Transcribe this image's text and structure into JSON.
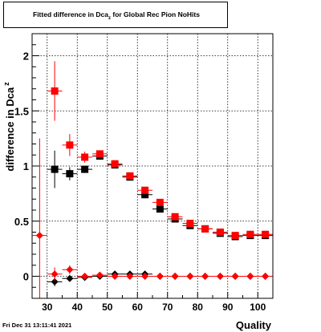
{
  "header": {
    "title_main": "Fitted difference in Dca",
    "title_sub": "z",
    "title_tail": "  for Global Rec Pion NoHits"
  },
  "footer": {
    "timestamp": "Fri Dec 31 13:11:41 2021"
  },
  "chart_data": {
    "type": "scatter",
    "title": "Fitted difference in Dca_z for Global Rec Pion NoHits",
    "xlabel": "Quality",
    "ylabel_main": "difference in Dca",
    "ylabel_sub": "z",
    "xlim": [
      25,
      105
    ],
    "ylim": [
      -0.2,
      2.2
    ],
    "x_ticks": [
      30,
      40,
      50,
      60,
      70,
      80,
      90,
      100
    ],
    "y_ticks": [
      0,
      0.5,
      1,
      1.5,
      2
    ],
    "y_tick_labels": [
      "0",
      "0.5",
      "1",
      "1.5",
      "2"
    ],
    "grid": true,
    "series": [
      {
        "marker": "square",
        "color": "#000000",
        "points": [
          {
            "x": 32.5,
            "y": 0.97,
            "err": 0.17
          },
          {
            "x": 37.5,
            "y": 0.93,
            "err": 0.06
          },
          {
            "x": 42.5,
            "y": 0.97,
            "err": 0.03
          },
          {
            "x": 47.5,
            "y": 1.09,
            "err": 0.02
          },
          {
            "x": 52.5,
            "y": 1.01,
            "err": 0.02
          },
          {
            "x": 57.5,
            "y": 0.9,
            "err": 0.02
          },
          {
            "x": 62.5,
            "y": 0.74,
            "err": 0.02
          },
          {
            "x": 67.5,
            "y": 0.61,
            "err": 0.02
          },
          {
            "x": 72.5,
            "y": 0.52,
            "err": 0.02
          },
          {
            "x": 77.5,
            "y": 0.46,
            "err": 0.015
          },
          {
            "x": 82.5,
            "y": 0.43,
            "err": 0.01
          },
          {
            "x": 87.5,
            "y": 0.39,
            "err": 0.01
          },
          {
            "x": 92.5,
            "y": 0.36,
            "err": 0.01
          },
          {
            "x": 97.5,
            "y": 0.37,
            "err": 0.01
          },
          {
            "x": 102.5,
            "y": 0.37,
            "err": 0.01
          }
        ]
      },
      {
        "marker": "square",
        "color": "#ff0000",
        "points": [
          {
            "x": 32.5,
            "y": 1.68,
            "err": 0.27
          },
          {
            "x": 37.5,
            "y": 1.19,
            "err": 0.1
          },
          {
            "x": 42.5,
            "y": 1.08,
            "err": 0.05
          },
          {
            "x": 47.5,
            "y": 1.11,
            "err": 0.03
          },
          {
            "x": 52.5,
            "y": 1.02,
            "err": 0.02
          },
          {
            "x": 57.5,
            "y": 0.91,
            "err": 0.02
          },
          {
            "x": 62.5,
            "y": 0.78,
            "err": 0.02
          },
          {
            "x": 67.5,
            "y": 0.67,
            "err": 0.02
          },
          {
            "x": 72.5,
            "y": 0.54,
            "err": 0.02
          },
          {
            "x": 77.5,
            "y": 0.48,
            "err": 0.015
          },
          {
            "x": 82.5,
            "y": 0.43,
            "err": 0.01
          },
          {
            "x": 87.5,
            "y": 0.4,
            "err": 0.01
          },
          {
            "x": 92.5,
            "y": 0.37,
            "err": 0.01
          },
          {
            "x": 97.5,
            "y": 0.38,
            "err": 0.01
          },
          {
            "x": 102.5,
            "y": 0.38,
            "err": 0.01
          }
        ]
      },
      {
        "marker": "diamond",
        "color": "#000000",
        "points": [
          {
            "x": 32.5,
            "y": -0.05,
            "err": 0.04
          },
          {
            "x": 37.5,
            "y": -0.02,
            "err": 0.02
          },
          {
            "x": 42.5,
            "y": -0.01,
            "err": 0.01
          },
          {
            "x": 47.5,
            "y": 0.0,
            "err": 0.01
          },
          {
            "x": 52.5,
            "y": 0.02,
            "err": 0.01
          },
          {
            "x": 57.5,
            "y": 0.02,
            "err": 0.01
          },
          {
            "x": 62.5,
            "y": 0.02,
            "err": 0.01
          },
          {
            "x": 67.5,
            "y": 0.0,
            "err": 0.01
          },
          {
            "x": 72.5,
            "y": 0.0,
            "err": 0.01
          },
          {
            "x": 77.5,
            "y": 0.0,
            "err": 0.005
          },
          {
            "x": 82.5,
            "y": 0.0,
            "err": 0.005
          },
          {
            "x": 87.5,
            "y": 0.0,
            "err": 0.005
          },
          {
            "x": 92.5,
            "y": 0.0,
            "err": 0.005
          },
          {
            "x": 97.5,
            "y": 0.0,
            "err": 0.005
          },
          {
            "x": 102.5,
            "y": 0.0,
            "err": 0.005
          }
        ]
      },
      {
        "marker": "diamond",
        "color": "#ff0000",
        "points": [
          {
            "x": 27.5,
            "y": 0.37,
            "err": 0.88
          },
          {
            "x": 32.5,
            "y": 0.02,
            "err": 0.06
          },
          {
            "x": 37.5,
            "y": 0.06,
            "err": 0.04
          },
          {
            "x": 42.5,
            "y": 0.0,
            "err": 0.02
          },
          {
            "x": 47.5,
            "y": 0.01,
            "err": 0.01
          },
          {
            "x": 52.5,
            "y": 0.0,
            "err": 0.01
          },
          {
            "x": 57.5,
            "y": 0.0,
            "err": 0.01
          },
          {
            "x": 62.5,
            "y": 0.0,
            "err": 0.01
          },
          {
            "x": 67.5,
            "y": 0.0,
            "err": 0.01
          },
          {
            "x": 72.5,
            "y": 0.0,
            "err": 0.01
          },
          {
            "x": 77.5,
            "y": 0.0,
            "err": 0.005
          },
          {
            "x": 82.5,
            "y": 0.0,
            "err": 0.005
          },
          {
            "x": 87.5,
            "y": 0.0,
            "err": 0.005
          },
          {
            "x": 92.5,
            "y": 0.0,
            "err": 0.005
          },
          {
            "x": 97.5,
            "y": 0.0,
            "err": 0.005
          },
          {
            "x": 102.5,
            "y": 0.0,
            "err": 0.005
          }
        ]
      }
    ]
  }
}
